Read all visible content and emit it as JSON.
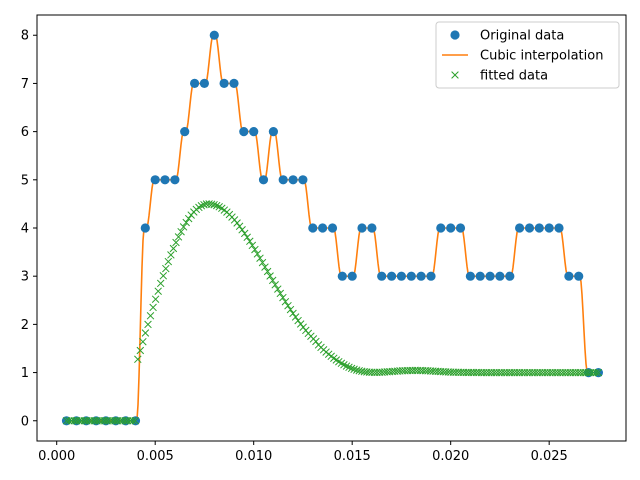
{
  "chart_data": {
    "type": "line",
    "xlim": [
      -0.001,
      0.0289
    ],
    "ylim": [
      -0.42,
      8.42
    ],
    "grid": false,
    "legend_placement": "top-right",
    "x_ticks": [
      {
        "value": 0.0,
        "label": "0.000"
      },
      {
        "value": 0.005,
        "label": "0.005"
      },
      {
        "value": 0.01,
        "label": "0.010"
      },
      {
        "value": 0.015,
        "label": "0.015"
      },
      {
        "value": 0.02,
        "label": "0.020"
      },
      {
        "value": 0.025,
        "label": "0.025"
      }
    ],
    "y_ticks": [
      {
        "value": 0,
        "label": "0"
      },
      {
        "value": 1,
        "label": "1"
      },
      {
        "value": 2,
        "label": "2"
      },
      {
        "value": 3,
        "label": "3"
      },
      {
        "value": 4,
        "label": "4"
      },
      {
        "value": 5,
        "label": "5"
      },
      {
        "value": 6,
        "label": "6"
      },
      {
        "value": 7,
        "label": "7"
      },
      {
        "value": 8,
        "label": "8"
      }
    ],
    "x": [
      0.0005,
      0.001,
      0.0015,
      0.002,
      0.0025,
      0.003,
      0.0035,
      0.004,
      0.0045,
      0.005,
      0.0055,
      0.006,
      0.0065,
      0.007,
      0.0075,
      0.008,
      0.0085,
      0.009,
      0.0095,
      0.01,
      0.0105,
      0.011,
      0.0115,
      0.012,
      0.0125,
      0.013,
      0.0135,
      0.014,
      0.0145,
      0.015,
      0.0155,
      0.016,
      0.0165,
      0.017,
      0.0175,
      0.018,
      0.0185,
      0.019,
      0.0195,
      0.02,
      0.0205,
      0.021,
      0.0215,
      0.022,
      0.0225,
      0.023,
      0.0235,
      0.024,
      0.0245,
      0.025,
      0.0255,
      0.026,
      0.0265,
      0.027,
      0.0275
    ],
    "series": [
      {
        "name": "Original data",
        "style": "markers",
        "marker": "circle",
        "color": "#1f77b4",
        "values": [
          0,
          0,
          0,
          0,
          0,
          0,
          0,
          0,
          4,
          5,
          5,
          5,
          6,
          7,
          7,
          8,
          7,
          7,
          6,
          6,
          5,
          6,
          5,
          5,
          5,
          4,
          4,
          4,
          3,
          3,
          4,
          4,
          3,
          3,
          3,
          3,
          3,
          3,
          4,
          4,
          4,
          3,
          3,
          3,
          3,
          3,
          4,
          4,
          4,
          4,
          4,
          3,
          3,
          1,
          1
        ]
      },
      {
        "name": "Cubic interpolation",
        "style": "line",
        "color": "#ff7f0e",
        "values": [
          0,
          0,
          0,
          0,
          0,
          0,
          0,
          0,
          4,
          5,
          5,
          5,
          6,
          7,
          7,
          8,
          7,
          7,
          6,
          6,
          5,
          6,
          5,
          5,
          5,
          4,
          4,
          4,
          3,
          3,
          4,
          4,
          3,
          3,
          3,
          3,
          3,
          3,
          4,
          4,
          4,
          3,
          3,
          3,
          3,
          3,
          4,
          4,
          4,
          4,
          4,
          3,
          3,
          1,
          1
        ]
      },
      {
        "name": "fitted data",
        "style": "markers",
        "marker": "x",
        "color": "#2ca02c",
        "model": {
          "zero_until": 0.0041,
          "rise_start": 0.0041,
          "rise_start_value": 1.25,
          "peak_x": 0.0077,
          "peak_value": 4.5,
          "decay_to": 1.0,
          "x_end": 0.0275,
          "n_points": 210
        }
      }
    ]
  }
}
